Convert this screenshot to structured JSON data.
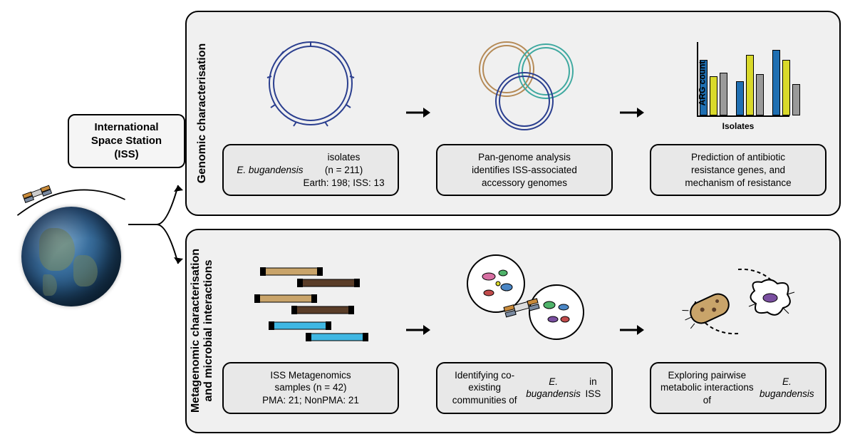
{
  "iss_label": "International Space\nStation (ISS)",
  "colors": {
    "panel_bg": "#f0f0f0",
    "caption_bg": "#e8e8e8",
    "border": "#000000",
    "plasmid_blue": "#2b3f8f",
    "plasmid_tan": "#b58a56",
    "plasmid_teal": "#3fa9a0",
    "bar_blue": "#1f6fb2",
    "bar_yellow": "#d9d92a",
    "bar_grey": "#9a9a9a",
    "seq_tan": "#c9a46a",
    "seq_brown": "#5a3d28",
    "seq_blue": "#3fb7e3",
    "microbe_pink": "#d66fa2",
    "microbe_green": "#4fb36a",
    "microbe_blue": "#4a86c5",
    "microbe_red": "#c14b4b",
    "microbe_purple": "#7a4fa0",
    "earth_ocean": "#3a6f9e",
    "earth_land": "#7a8c64"
  },
  "panels": {
    "top": {
      "label": "Genomic characterisation",
      "steps": [
        {
          "graphic": "single_plasmid",
          "caption_html": "<span class=\"italic\">E. bugandensis</span> isolates<br>(n = 211)<br>Earth: 198; ISS: 13"
        },
        {
          "graphic": "pan_genome",
          "caption_html": "Pan-genome analysis<br>identifies ISS-associated<br>accessory genomes"
        },
        {
          "graphic": "barchart",
          "caption_html": "Prediction of antibiotic<br>resistance genes, and<br>mechanism of resistance"
        }
      ]
    },
    "bottom": {
      "label": "Metagenomic characterisation\nand microbial interactions",
      "steps": [
        {
          "graphic": "sequences",
          "caption_html": "ISS Metagenomics<br>samples (n = 42)<br>PMA: 21; NonPMA: 21"
        },
        {
          "graphic": "communities",
          "caption_html": "Identifying co-existing<br>communities of<br><span class=\"italic\">E. bugandensis</span> in ISS"
        },
        {
          "graphic": "pairwise",
          "caption_html": "Exploring pairwise<br>metabolic interactions of<br><span class=\"italic\">E. bugandensis</span>"
        }
      ]
    }
  },
  "barchart": {
    "type": "bar",
    "ylabel": "ARG count",
    "xlabel": "Isolates",
    "groups": 3,
    "series_per_group": 3,
    "bar_colors": [
      "#1f6fb2",
      "#d9d92a",
      "#9a9a9a"
    ],
    "values_pct": [
      78,
      55,
      60,
      48,
      85,
      58,
      92,
      78,
      44
    ],
    "ylim": [
      0,
      100
    ]
  },
  "sequences": {
    "reads": [
      {
        "color": "#c9a46a"
      },
      {
        "color": "#5a3d28"
      },
      {
        "color": "#c9a46a"
      },
      {
        "color": "#5a3d28"
      },
      {
        "color": "#3fb7e3"
      },
      {
        "color": "#3fb7e3"
      }
    ]
  },
  "typography": {
    "caption_fontsize_pt": 13.5,
    "panel_label_fontsize_pt": 16,
    "axis_label_fontsize_pt": 12
  }
}
